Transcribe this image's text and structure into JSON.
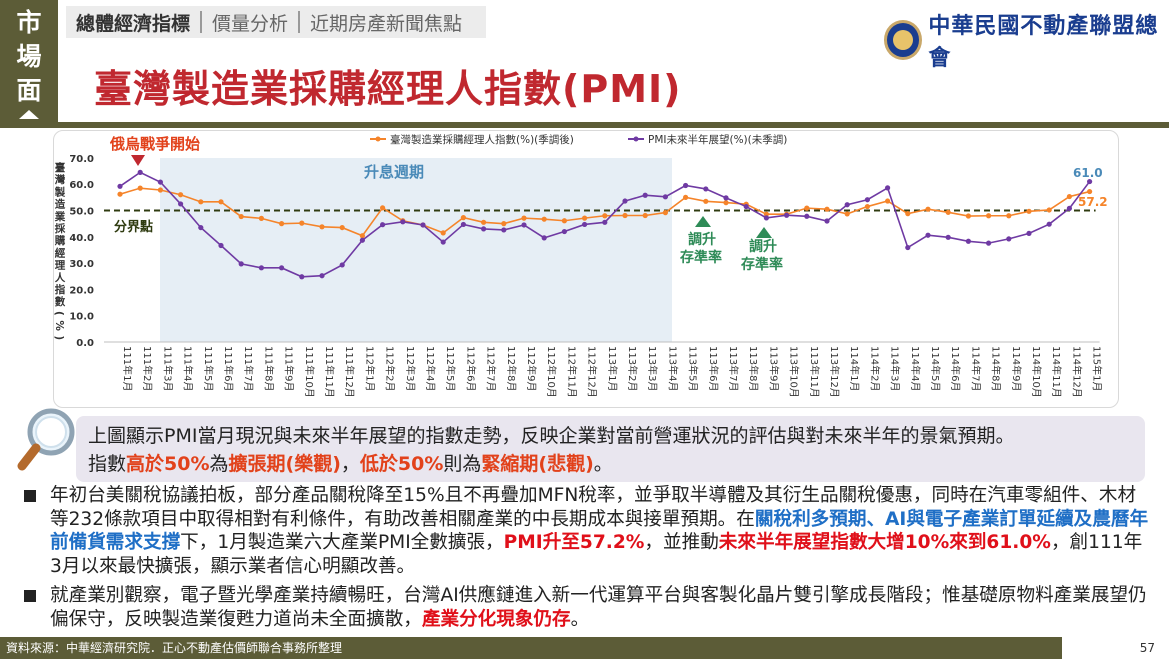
{
  "side_badge": {
    "chars": [
      "市",
      "場",
      "面"
    ]
  },
  "nav": {
    "tabs": [
      {
        "label": "總體經濟指標",
        "active": true
      },
      {
        "label": "價量分析",
        "active": false
      },
      {
        "label": "近期房產新聞焦點",
        "active": false
      }
    ]
  },
  "logo": {
    "name": "中華民國不動產聯盟總會"
  },
  "title": "臺灣製造業採購經理人指數(PMI)",
  "chart_data": {
    "type": "line",
    "legend": [
      "臺灣製造業採購經理人指數(%)(季調後)",
      "PMI未來半年展望(%)(未季調)"
    ],
    "legend_position": "top-center",
    "ylabel": "臺灣製造業採購經理人指數(%)",
    "ylim": [
      0,
      70
    ],
    "yticks": [
      "70.0",
      "60.0",
      "50.0",
      "40.0",
      "30.0",
      "20.0",
      "10.0",
      "0.0"
    ],
    "categories": [
      "111年1月",
      "111年2月",
      "111年3月",
      "111年4月",
      "111年5月",
      "111年6月",
      "111年7月",
      "111年8月",
      "111年9月",
      "111年10月",
      "111年11月",
      "111年12月",
      "112年1月",
      "112年2月",
      "112年3月",
      "112年4月",
      "112年5月",
      "112年6月",
      "112年7月",
      "112年8月",
      "112年9月",
      "112年10月",
      "112年11月",
      "112年12月",
      "113年1月",
      "113年2月",
      "113年3月",
      "113年4月",
      "113年5月",
      "113年6月",
      "113年7月",
      "113年8月",
      "113年9月",
      "113年10月",
      "113年11月",
      "113年12月",
      "114年1月",
      "114年2月",
      "114年3月",
      "114年4月",
      "114年5月",
      "114年6月",
      "114年7月",
      "114年8月",
      "114年9月",
      "114年10月",
      "114年11月",
      "114年12月",
      "115年1月"
    ],
    "series": [
      {
        "name": "臺灣製造業採購經理人指數(%)(季調後)",
        "color": "#f5842a",
        "values": [
          56.2,
          58.5,
          57.8,
          56.0,
          53.3,
          53.3,
          47.7,
          47.0,
          45.0,
          45.2,
          43.8,
          43.5,
          40.4,
          51.0,
          46.1,
          44.5,
          41.5,
          47.3,
          45.5,
          45.0,
          47.1,
          46.7,
          46.1,
          47.1,
          48.0,
          48.1,
          48.1,
          49.2,
          55.0,
          53.5,
          53.0,
          52.4,
          48.6,
          48.6,
          50.9,
          50.5,
          48.7,
          51.5,
          53.6,
          48.8,
          50.5,
          49.3,
          47.9,
          48.0,
          48.0,
          49.7,
          50.2,
          55.3,
          57.2
        ]
      },
      {
        "name": "PMI未來半年展望(%)(未季調)",
        "color": "#6f3aa3",
        "values": [
          59.2,
          64.5,
          60.8,
          52.5,
          43.5,
          36.7,
          29.7,
          28.2,
          28.2,
          24.8,
          25.2,
          29.3,
          38.7,
          44.6,
          45.7,
          44.5,
          38.0,
          44.7,
          43.0,
          42.6,
          44.5,
          39.6,
          42.0,
          44.7,
          45.5,
          53.6,
          55.8,
          55.2,
          59.5,
          58.2,
          54.8,
          51.5,
          47.2,
          48.2,
          47.8,
          46.0,
          52.2,
          54.1,
          58.6,
          35.9,
          40.6,
          39.8,
          38.3,
          37.6,
          39.2,
          41.3,
          44.8,
          50.8,
          61.0
        ]
      }
    ],
    "reference_line": {
      "value": 50,
      "label": "分界點"
    },
    "shaded_period": {
      "label": "升息週期",
      "start": "111年3月",
      "end": "113年3月"
    },
    "annotations": [
      {
        "text": "俄烏戰爭開始",
        "at": "111年2月"
      },
      {
        "text": "調升存準率",
        "at": "113年6月"
      },
      {
        "text": "調升存準率",
        "at": "113年9月"
      }
    ],
    "end_labels": [
      "61.0",
      "57.2"
    ]
  },
  "annotation_texts": {
    "war": "俄烏戰爭開始",
    "rate_cycle": "升息週期",
    "divider": "分界點",
    "rr1_line1": "調升",
    "rr1_line2": "存準率",
    "rr2_line1": "調升",
    "rr2_line2": "存準率",
    "end_outlook": "61.0",
    "end_pmi": "57.2"
  },
  "desc": {
    "line1": "上圖顯示PMI當月現況與未來半年展望的指數走勢，反映企業對當前營運狀況的評估與對未來半年的景氣預期。",
    "p1": "指數",
    "e1": "高於50%",
    "p2": "為",
    "e2": "擴張期(樂觀)",
    "p3": "，",
    "e3": "低於50%",
    "p4": "則為",
    "e4": "緊縮期(悲觀)",
    "p5": "。"
  },
  "bullets": {
    "b1_t1": "年初台美關稅協議拍板，部分產品關稅降至15%且不再疊加MFN稅率，並爭取半導體及其衍生品關稅優惠，同時在汽車零組件、木材等232條款項目中取得相對有利條件，有助改善相關產業的中長期成本與接單預期。在",
    "b1_blue": "關稅利多預期、AI與電子產業訂單延續及農曆年前備貨需求支撐",
    "b1_t2": "下，1月製造業六大產業PMI全數擴張，",
    "b1_red1": "PMI升至57.2%",
    "b1_t3": "，並推動",
    "b1_red2": "未來半年展望指數大增10%來到61.0%",
    "b1_t4": "，創111年3月以來最快擴張，顯示業者信心明顯改善。",
    "b2_t1": "就產業別觀察，電子暨光學產業持續暢旺，台灣AI供應鏈進入新一代運算平台與客製化晶片雙引擎成長階段；惟基礎原物料產業展望仍偏保守，反映製造業復甦力道尚未全面擴散，",
    "b2_red": "產業分化現象仍存",
    "b2_t2": "。"
  },
  "footer": {
    "source": "資料來源：中華經濟研究院．正心不動產估價師聯合事務所整理",
    "page": "57"
  }
}
